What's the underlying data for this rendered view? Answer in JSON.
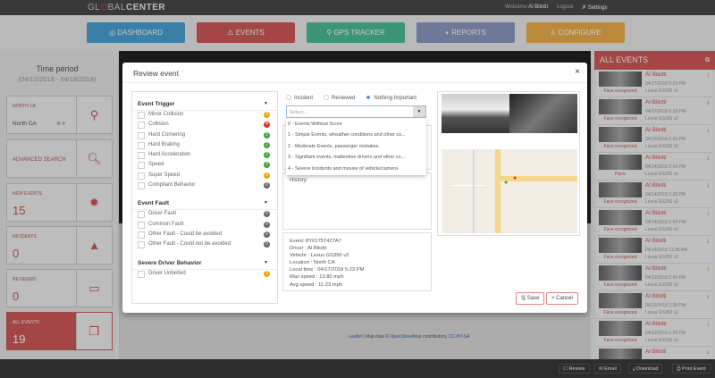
{
  "header": {
    "logo_light": "GL",
    "logo_o": "O",
    "logo_rest": "BAL",
    "logo_bold": "CENTER",
    "welcome": "Welcome",
    "user": "Al Bilotti",
    "logout": "Logout",
    "settings": "Settings"
  },
  "nav": [
    {
      "label": "DASHBOARD",
      "color": "#4aa3d6"
    },
    {
      "label": "EVENTS",
      "color": "#d25a5a"
    },
    {
      "label": "GPS TRACKER",
      "color": "#4fbf9a"
    },
    {
      "label": "REPORTS",
      "color": "#8d9bc4"
    },
    {
      "label": "CONFIGURE",
      "color": "#f0b04c"
    }
  ],
  "left": {
    "time_title": "Time period",
    "time_range": "(04/12/2018 - 04/18/2018)",
    "region_label": "NORTH CA",
    "region_value": "North CA",
    "advanced": "ADVANCED SEARCH",
    "cards": [
      {
        "label": "NEW EVENTS",
        "value": "15"
      },
      {
        "label": "INCIDENTS",
        "value": "0"
      },
      {
        "label": "REVIEWED",
        "value": "0"
      },
      {
        "label": "ALL EVENTS",
        "value": "19"
      }
    ]
  },
  "modal": {
    "title": "Review event",
    "close": "×",
    "sections": [
      {
        "title": "Event Trigger",
        "items": [
          {
            "label": "Minor Collision",
            "count": "3",
            "color": "#f0a500"
          },
          {
            "label": "Collision",
            "count": "4",
            "color": "#d9332b"
          },
          {
            "label": "Hard Cornering",
            "count": "2",
            "color": "#3aa53a"
          },
          {
            "label": "Hard Braking",
            "count": "2",
            "color": "#3aa53a"
          },
          {
            "label": "Hard Acceleration",
            "count": "2",
            "color": "#3aa53a"
          },
          {
            "label": "Speed",
            "count": "2",
            "color": "#3aa53a"
          },
          {
            "label": "Super Speed",
            "count": "3",
            "color": "#f0a500"
          },
          {
            "label": "Compliant Behavior",
            "count": "0",
            "color": "#666666"
          }
        ]
      },
      {
        "title": "Event Fault",
        "items": [
          {
            "label": "Driver Fault",
            "count": "0",
            "color": "#666666"
          },
          {
            "label": "Common Fault",
            "count": "0",
            "color": "#666666"
          },
          {
            "label": "Other Fault - Could be avoided",
            "count": "0",
            "color": "#666666"
          },
          {
            "label": "Other Fault - Could not be avoided",
            "count": "0",
            "color": "#666666"
          }
        ]
      },
      {
        "title": "Severe Driver Behavior",
        "items": [
          {
            "label": "Driver Unbelted",
            "count": "3",
            "color": "#f0a500"
          }
        ]
      }
    ],
    "radios": [
      {
        "label": "Incident",
        "checked": false
      },
      {
        "label": "Reviewed",
        "checked": false
      },
      {
        "label": "Nothing Important",
        "checked": true
      }
    ],
    "select_placeholder": "Select...",
    "options": [
      "0 - Events Without Score",
      "1 - Simple Events, wheather conditions and other co...",
      "2 - Moderate Events, passenger mistakes",
      "3 - Signifiant events, inattentive drivers and other co...",
      "4 - Severe Incidents and misuse of vehicle/camera"
    ],
    "history_label": "History:",
    "info": [
      "Event: 8Y01757427A7",
      "Driver : Al Bilotti",
      "Vehicle : Lexus GS350 v2",
      "Location : North CA",
      "Local time : 04/17/2018 5:23 PM",
      "Max speed : 13.80 mph",
      "Avg speed : 11.23 mph"
    ],
    "save": "Save",
    "cancel": "Cancel"
  },
  "map_attrib": {
    "leaflet": "Leaflet",
    "text": " | Map data © ",
    "osm": "OpenStreetMap",
    "contrib": " contributors, ",
    "license": "CC-BY-SA"
  },
  "right": {
    "title": "ALL EVENTS",
    "events": [
      {
        "name": "Al Bilotti",
        "date": "04/17/2018 5:23 PM",
        "vehicle": "Lexus GS350 v2",
        "tag": "Face recognized"
      },
      {
        "name": "Al Bilotti",
        "date": "04/17/2018 5:18 PM",
        "vehicle": "Lexus GS350 v2",
        "tag": "Face recognized"
      },
      {
        "name": "Al Bilotti",
        "date": "04/15/2018 1:25 PM",
        "vehicle": "Lexus GS350 v2",
        "tag": "Face recognized"
      },
      {
        "name": "Al Bilotti",
        "date": "04/14/2018 2:34 PM",
        "vehicle": "Lexus GS350 v2",
        "tag": "Panic"
      },
      {
        "name": "Al Bilotti",
        "date": "04/14/2018 2:28 PM",
        "vehicle": "Lexus GS350 v2",
        "tag": "Face recognized"
      },
      {
        "name": "Al Bilotti",
        "date": "04/14/2018 1:44 PM",
        "vehicle": "Lexus GS350 v2",
        "tag": "Face recognized"
      },
      {
        "name": "Al Bilotti",
        "date": "04/14/2018 11:38 AM",
        "vehicle": "Lexus GS350 v2",
        "tag": "Face recognized"
      },
      {
        "name": "Al Bilotti",
        "date": "04/13/2018 2:49 PM",
        "vehicle": "Lexus GS350 v2",
        "tag": "Face recognized"
      },
      {
        "name": "Al Bilotti",
        "date": "04/13/2018 2:39 PM",
        "vehicle": "Lexus GS350 v2",
        "tag": "Face recognized"
      },
      {
        "name": "Al Bilotti",
        "date": "04/13/2018 1:28 PM",
        "vehicle": "Lexus GS350 v2",
        "tag": "Face recognized"
      },
      {
        "name": "Al Bilotti",
        "date": "",
        "vehicle": "",
        "tag": ""
      }
    ]
  },
  "bottom": {
    "review": "Review",
    "email": "Email",
    "download": "Download",
    "print": "Print Event"
  }
}
